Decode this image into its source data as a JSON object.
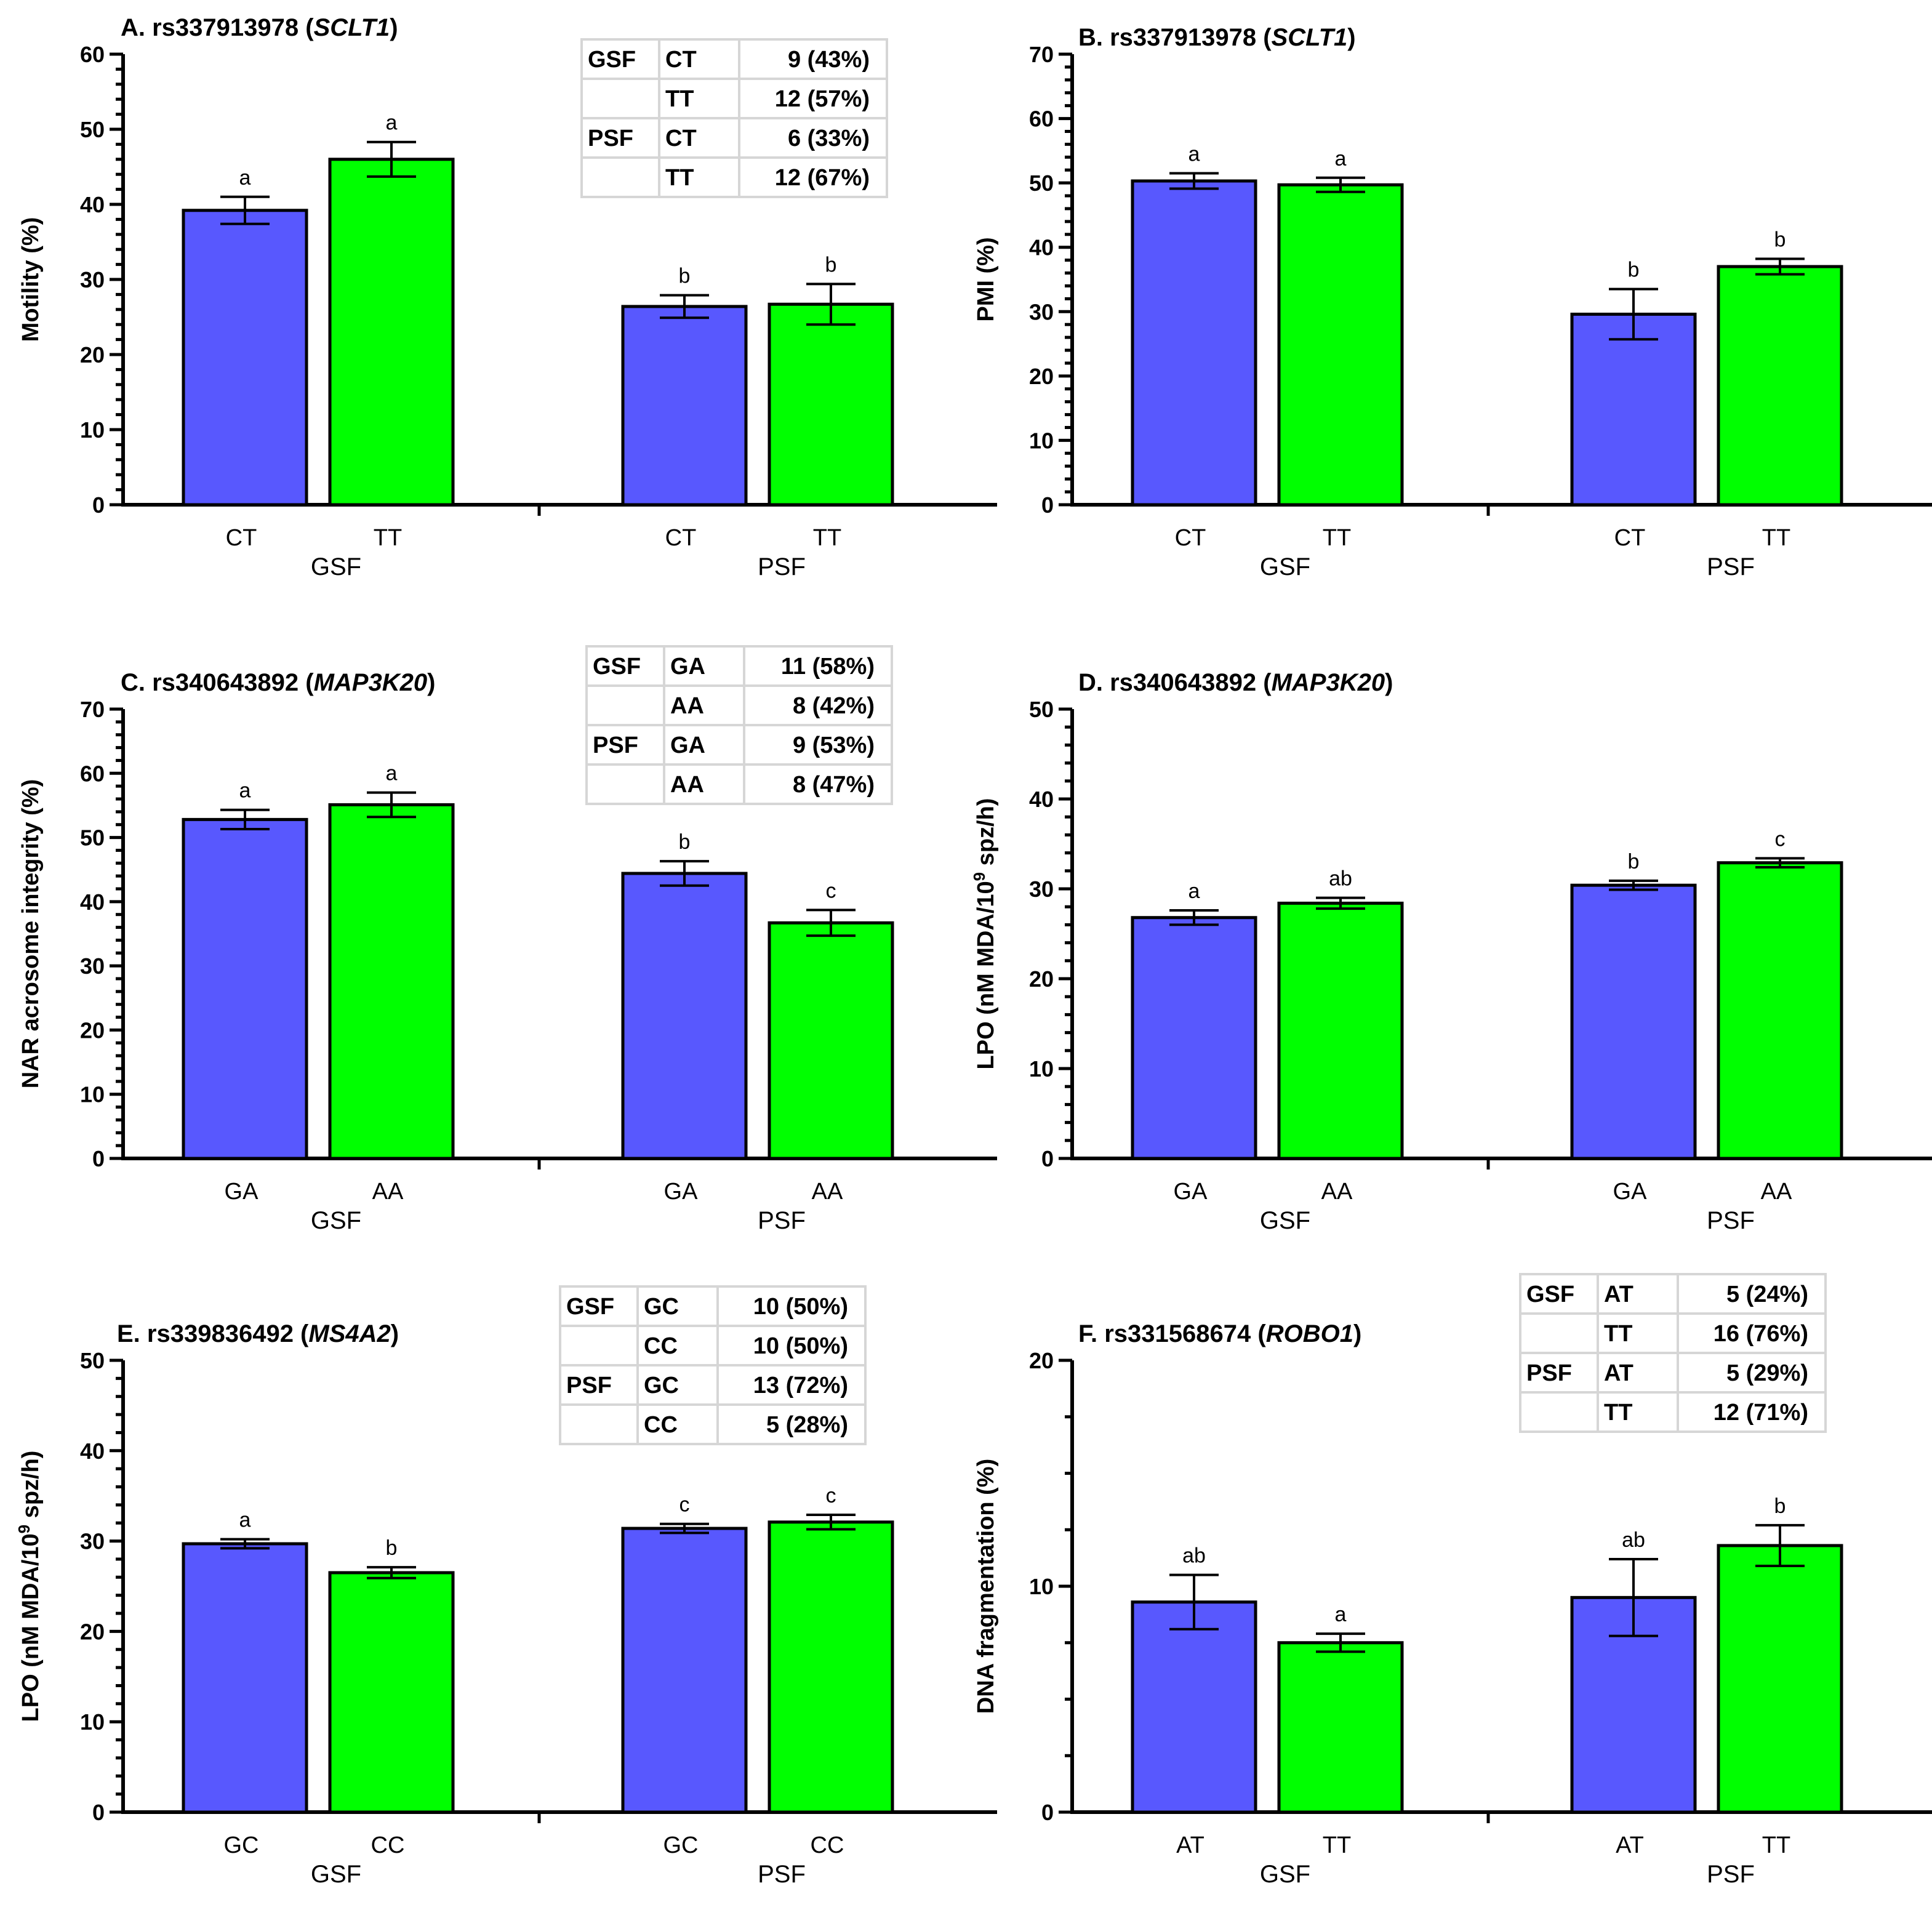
{
  "colors": {
    "genotype1": "#5858fe",
    "genotype2": "#00ff00",
    "axis": "#000000",
    "table_border": "#d6d6d6"
  },
  "chart_data": [
    {
      "id": "A",
      "type": "bar",
      "title": "A. rs337913978 (",
      "gene": "SCLT1",
      "title_end": ")",
      "ylabel": "Motility (%)",
      "ylim": [
        0,
        60
      ],
      "yticks": [
        0,
        10,
        20,
        30,
        40,
        50,
        60
      ],
      "minor": 5,
      "groups": [
        "GSF",
        "PSF"
      ],
      "categories": [
        "CT",
        "TT",
        "CT",
        "TT"
      ],
      "values": [
        39.2,
        46.0,
        26.4,
        26.7
      ],
      "errors": [
        1.8,
        2.3,
        1.5,
        2.7
      ],
      "letters": [
        "a",
        "a",
        "b",
        "b"
      ],
      "table": [
        [
          "GSF",
          "CT",
          "9 (43%)"
        ],
        [
          "",
          "TT",
          "12 (57%)"
        ],
        [
          "PSF",
          "CT",
          "6 (33%)"
        ],
        [
          "",
          "TT",
          "12 (67%)"
        ]
      ]
    },
    {
      "id": "B",
      "type": "bar",
      "title": "B. rs337913978 (",
      "gene": "SCLT1",
      "title_end": ")",
      "ylabel": "PMI (%)",
      "ylim": [
        0,
        70
      ],
      "yticks": [
        0,
        10,
        20,
        30,
        40,
        50,
        60,
        70
      ],
      "minor": 5,
      "groups": [
        "GSF",
        "PSF"
      ],
      "categories": [
        "CT",
        "TT",
        "CT",
        "TT"
      ],
      "values": [
        50.3,
        49.7,
        29.6,
        37.0
      ],
      "errors": [
        1.2,
        1.1,
        3.9,
        1.2
      ],
      "letters": [
        "a",
        "a",
        "b",
        "b"
      ]
    },
    {
      "id": "C",
      "type": "bar",
      "title": "C. rs340643892 (",
      "gene": "MAP3K20",
      "title_end": ")",
      "ylabel": "NAR acrosome integrity (%)",
      "ylim": [
        0,
        70
      ],
      "yticks": [
        0,
        10,
        20,
        30,
        40,
        50,
        60,
        70
      ],
      "minor": 5,
      "groups": [
        "GSF",
        "PSF"
      ],
      "categories": [
        "GA",
        "AA",
        "GA",
        "AA"
      ],
      "values": [
        52.8,
        55.1,
        44.4,
        36.7
      ],
      "errors": [
        1.5,
        1.9,
        1.9,
        2.0
      ],
      "letters": [
        "a",
        "a",
        "b",
        "c"
      ],
      "table": [
        [
          "GSF",
          "GA",
          "11 (58%)"
        ],
        [
          "",
          "AA",
          "8 (42%)"
        ],
        [
          "PSF",
          "GA",
          "9 (53%)"
        ],
        [
          "",
          "AA",
          "8 (47%)"
        ]
      ]
    },
    {
      "id": "D",
      "type": "bar",
      "title": "D. rs340643892 (",
      "gene": "MAP3K20",
      "title_end": ")",
      "ylabel": "LPO (nM MDA/10",
      "ylabel_sup": "9",
      "ylabel_end": " spz/h)",
      "ylim": [
        0,
        50
      ],
      "yticks": [
        0,
        10,
        20,
        30,
        40,
        50
      ],
      "minor": 5,
      "groups": [
        "GSF",
        "PSF"
      ],
      "categories": [
        "GA",
        "AA",
        "GA",
        "AA"
      ],
      "values": [
        26.8,
        28.4,
        30.4,
        32.9
      ],
      "errors": [
        0.8,
        0.6,
        0.5,
        0.5
      ],
      "letters": [
        "a",
        "ab",
        "b",
        "c"
      ]
    },
    {
      "id": "E",
      "type": "bar",
      "title": "E. rs339836492 (",
      "gene": "MS4A2",
      "title_end": ")",
      "ylabel": "LPO (nM MDA/10",
      "ylabel_sup": "9",
      "ylabel_end": " spz/h)",
      "ylim": [
        0,
        50
      ],
      "yticks": [
        0,
        10,
        20,
        30,
        40,
        50
      ],
      "minor": 5,
      "groups": [
        "GSF",
        "PSF"
      ],
      "categories": [
        "GC",
        "CC",
        "GC",
        "CC"
      ],
      "values": [
        29.7,
        26.5,
        31.4,
        32.1
      ],
      "errors": [
        0.5,
        0.6,
        0.5,
        0.8
      ],
      "letters": [
        "a",
        "b",
        "c",
        "c"
      ],
      "table": [
        [
          "GSF",
          "GC",
          "10 (50%)"
        ],
        [
          "",
          "CC",
          "10 (50%)"
        ],
        [
          "PSF",
          "GC",
          "13 (72%)"
        ],
        [
          "",
          "CC",
          "5 (28%)"
        ]
      ]
    },
    {
      "id": "F",
      "type": "bar",
      "title": "F. rs331568674 (",
      "gene": "ROBO1",
      "title_end": ")",
      "ylabel": "DNA fragmentation (%)",
      "ylim": [
        0,
        20
      ],
      "yticks": [
        0,
        10,
        20
      ],
      "minor": 4,
      "groups": [
        "GSF",
        "PSF"
      ],
      "categories": [
        "AT",
        "TT",
        "AT",
        "TT"
      ],
      "values": [
        9.3,
        7.5,
        9.5,
        11.8
      ],
      "errors": [
        1.2,
        0.4,
        1.7,
        0.9
      ],
      "letters": [
        "ab",
        "a",
        "ab",
        "b"
      ],
      "table": [
        [
          "GSF",
          "AT",
          "5 (24%)"
        ],
        [
          "",
          "TT",
          "16 (76%)"
        ],
        [
          "PSF",
          "AT",
          "5 (29%)"
        ],
        [
          "",
          "TT",
          "12 (71%)"
        ]
      ]
    }
  ]
}
